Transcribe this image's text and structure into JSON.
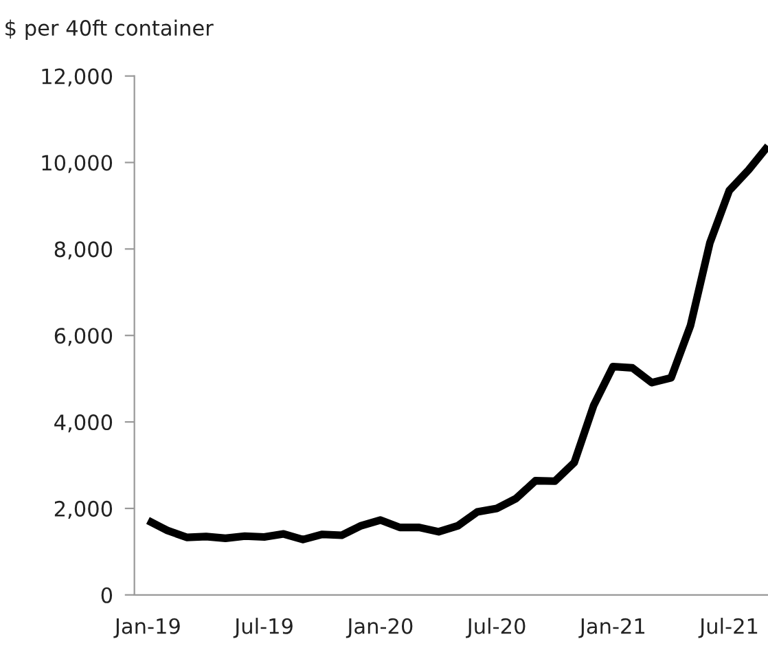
{
  "chart_data": {
    "type": "line",
    "ylabel": "$ per 40ft container",
    "categories": [
      "Jan-19",
      null,
      null,
      null,
      null,
      null,
      "Jul-19",
      null,
      null,
      null,
      null,
      null,
      "Jan-20",
      null,
      null,
      null,
      null,
      null,
      "Jul-20",
      null,
      null,
      null,
      null,
      null,
      "Jan-21",
      null,
      null,
      null,
      null,
      null,
      "Jul-21",
      null,
      null
    ],
    "series": [
      {
        "color": "#000000",
        "values": [
          1720,
          1490,
          1330,
          1350,
          1310,
          1360,
          1340,
          1410,
          1280,
          1400,
          1380,
          1600,
          1730,
          1560,
          1560,
          1460,
          1600,
          1920,
          2000,
          2230,
          2640,
          2630,
          3060,
          4380,
          5280,
          5250,
          4910,
          5020,
          6230,
          8140,
          9350,
          9830,
          10380
        ]
      }
    ],
    "ylim": [
      0,
      12000
    ],
    "yticks": [
      {
        "value": 0,
        "label": "0"
      },
      {
        "value": 2000,
        "label": "2,000"
      },
      {
        "value": 4000,
        "label": "4,000"
      },
      {
        "value": 6000,
        "label": "6,000"
      },
      {
        "value": 8000,
        "label": "8,000"
      },
      {
        "value": 10000,
        "label": "10,000"
      },
      {
        "value": 12000,
        "label": "12,000"
      }
    ],
    "marker": "none",
    "line_style": "solid"
  }
}
